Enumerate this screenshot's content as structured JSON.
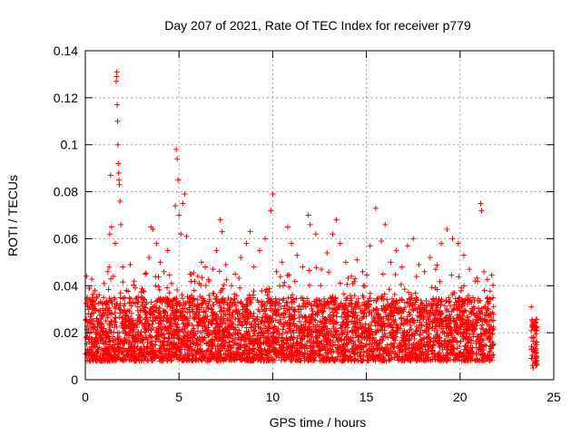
{
  "chart_data": {
    "type": "scatter",
    "title": "Day 207 of 2021, Rate Of TEC Index for receiver p779",
    "xlabel": "GPS time / hours",
    "ylabel": "ROTI / TECUs",
    "xlim": [
      0,
      25
    ],
    "ylim": [
      0,
      0.14
    ],
    "xticks": [
      0,
      5,
      10,
      15,
      20,
      25
    ],
    "yticks": [
      0,
      0.02,
      0.04,
      0.06,
      0.08,
      0.1,
      0.12,
      0.14
    ],
    "xtick_labels": [
      "0",
      "5",
      "10",
      "15",
      "20",
      "25"
    ],
    "ytick_labels": [
      "0",
      "0.02",
      "0.04",
      "0.06",
      "0.08",
      "0.1",
      "0.12",
      "0.14"
    ],
    "grid": true,
    "marker": "+",
    "color": "#ff0000",
    "series": [
      {
        "name": "ROTI",
        "points": [
          [
            0.05,
            0.018
          ],
          [
            0.1,
            0.035
          ],
          [
            0.15,
            0.028
          ],
          [
            0.2,
            0.039
          ],
          [
            0.3,
            0.022
          ],
          [
            0.4,
            0.031
          ],
          [
            0.5,
            0.015
          ],
          [
            0.6,
            0.026
          ],
          [
            0.7,
            0.012
          ],
          [
            0.8,
            0.033
          ],
          [
            0.9,
            0.019
          ],
          [
            1.0,
            0.041
          ],
          [
            1.1,
            0.025
          ],
          [
            1.2,
            0.046
          ],
          [
            1.3,
            0.062
          ],
          [
            1.35,
            0.087
          ],
          [
            1.4,
            0.065
          ],
          [
            1.5,
            0.044
          ],
          [
            1.6,
            0.058
          ],
          [
            1.65,
            0.127
          ],
          [
            1.66,
            0.129
          ],
          [
            1.68,
            0.131
          ],
          [
            1.7,
            0.117
          ],
          [
            1.72,
            0.11
          ],
          [
            1.74,
            0.1
          ],
          [
            1.76,
            0.092
          ],
          [
            1.78,
            0.088
          ],
          [
            1.8,
            0.085
          ],
          [
            1.82,
            0.083
          ],
          [
            1.85,
            0.076
          ],
          [
            1.9,
            0.066
          ],
          [
            2.0,
            0.048
          ],
          [
            2.2,
            0.038
          ],
          [
            2.4,
            0.049
          ],
          [
            2.6,
            0.042
          ],
          [
            2.8,
            0.031
          ],
          [
            3.0,
            0.035
          ],
          [
            3.2,
            0.045
          ],
          [
            3.4,
            0.052
          ],
          [
            3.5,
            0.065
          ],
          [
            3.6,
            0.064
          ],
          [
            3.8,
            0.058
          ],
          [
            4.0,
            0.05
          ],
          [
            4.2,
            0.046
          ],
          [
            4.4,
            0.055
          ],
          [
            4.6,
            0.041
          ],
          [
            4.8,
            0.074
          ],
          [
            4.85,
            0.098
          ],
          [
            4.9,
            0.094
          ],
          [
            4.95,
            0.085
          ],
          [
            5.0,
            0.07
          ],
          [
            5.1,
            0.062
          ],
          [
            5.2,
            0.075
          ],
          [
            5.3,
            0.079
          ],
          [
            5.4,
            0.061
          ],
          [
            5.6,
            0.045
          ],
          [
            5.8,
            0.038
          ],
          [
            6.0,
            0.044
          ],
          [
            6.2,
            0.05
          ],
          [
            6.4,
            0.048
          ],
          [
            6.6,
            0.042
          ],
          [
            6.8,
            0.047
          ],
          [
            7.0,
            0.055
          ],
          [
            7.2,
            0.068
          ],
          [
            7.3,
            0.063
          ],
          [
            7.5,
            0.049
          ],
          [
            7.8,
            0.04
          ],
          [
            8.0,
            0.045
          ],
          [
            8.3,
            0.052
          ],
          [
            8.6,
            0.058
          ],
          [
            8.8,
            0.063
          ],
          [
            9.0,
            0.048
          ],
          [
            9.3,
            0.055
          ],
          [
            9.6,
            0.06
          ],
          [
            9.9,
            0.072
          ],
          [
            10.0,
            0.079
          ],
          [
            10.2,
            0.046
          ],
          [
            10.5,
            0.05
          ],
          [
            10.8,
            0.065
          ],
          [
            11.0,
            0.058
          ],
          [
            11.3,
            0.053
          ],
          [
            11.6,
            0.048
          ],
          [
            11.9,
            0.07
          ],
          [
            12.0,
            0.066
          ],
          [
            12.3,
            0.062
          ],
          [
            12.6,
            0.047
          ],
          [
            12.9,
            0.054
          ],
          [
            13.2,
            0.062
          ],
          [
            13.4,
            0.068
          ],
          [
            13.6,
            0.058
          ],
          [
            13.9,
            0.05
          ],
          [
            14.2,
            0.044
          ],
          [
            14.5,
            0.051
          ],
          [
            14.8,
            0.046
          ],
          [
            15.2,
            0.057
          ],
          [
            15.5,
            0.073
          ],
          [
            15.8,
            0.059
          ],
          [
            16.0,
            0.066
          ],
          [
            16.3,
            0.05
          ],
          [
            16.6,
            0.055
          ],
          [
            16.9,
            0.048
          ],
          [
            17.2,
            0.057
          ],
          [
            17.5,
            0.06
          ],
          [
            17.8,
            0.049
          ],
          [
            18.1,
            0.046
          ],
          [
            18.4,
            0.052
          ],
          [
            18.7,
            0.047
          ],
          [
            19.0,
            0.058
          ],
          [
            19.3,
            0.064
          ],
          [
            19.6,
            0.06
          ],
          [
            19.9,
            0.058
          ],
          [
            20.2,
            0.053
          ],
          [
            20.5,
            0.047
          ],
          [
            20.8,
            0.042
          ],
          [
            21.1,
            0.075
          ],
          [
            21.15,
            0.072
          ],
          [
            21.3,
            0.038
          ],
          [
            21.5,
            0.03
          ],
          [
            21.7,
            0.025
          ],
          [
            23.8,
            0.031
          ],
          [
            23.85,
            0.025
          ],
          [
            23.9,
            0.018
          ],
          [
            23.95,
            0.012
          ],
          [
            24.0,
            0.008
          ],
          [
            24.05,
            0.022
          ],
          [
            24.1,
            0.015
          ],
          [
            23.9,
            0.005
          ]
        ]
      }
    ],
    "band": {
      "x_start": 0,
      "x_end": 21.8,
      "baseline_low": 0.008,
      "baseline_high": 0.035,
      "gap_x_start": 21.8,
      "gap_x_end": 23.8
    }
  }
}
